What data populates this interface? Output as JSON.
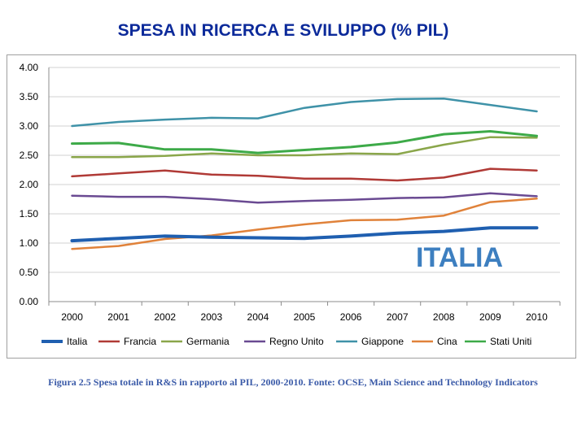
{
  "title": "SPESA IN RICERCA E SVILUPPO (% PIL)",
  "caption": "Figura 2.5 Spesa totale in R&S in rapporto al PIL, 2000-2010. Fonte: OCSE, Main Science and Technology Indicators",
  "chart_data": {
    "type": "line",
    "title": "SPESA IN RICERCA E SVILUPPO (% PIL)",
    "xlabel": "",
    "ylabel": "",
    "categories": [
      "2000",
      "2001",
      "2002",
      "2003",
      "2004",
      "2005",
      "2006",
      "2007",
      "2008",
      "2009",
      "2010"
    ],
    "ylim": [
      0,
      4
    ],
    "yticks": [
      "0.00",
      "0.50",
      "1.00",
      "1.50",
      "2.00",
      "2.50",
      "3.00",
      "3.50",
      "4.00"
    ],
    "grid": true,
    "legend": "bottom",
    "annotation": "ITALIA",
    "series": [
      {
        "name": "Italia",
        "color": "#1f5fb0",
        "width": 4,
        "values": [
          1.04,
          1.08,
          1.12,
          1.1,
          1.09,
          1.08,
          1.12,
          1.17,
          1.2,
          1.26,
          1.26
        ]
      },
      {
        "name": "Francia",
        "color": "#b03a36",
        "width": 2.5,
        "values": [
          2.14,
          2.19,
          2.24,
          2.17,
          2.15,
          2.1,
          2.1,
          2.07,
          2.12,
          2.27,
          2.24
        ]
      },
      {
        "name": "Germania",
        "color": "#8aa64a",
        "width": 2.5,
        "values": [
          2.47,
          2.47,
          2.49,
          2.53,
          2.5,
          2.5,
          2.53,
          2.52,
          2.68,
          2.81,
          2.8
        ]
      },
      {
        "name": "Regno Unito",
        "color": "#6a4a92",
        "width": 2.5,
        "values": [
          1.81,
          1.79,
          1.79,
          1.75,
          1.69,
          1.72,
          1.74,
          1.77,
          1.78,
          1.85,
          1.8
        ]
      },
      {
        "name": "Giappone",
        "color": "#3f92a8",
        "width": 2.5,
        "values": [
          3.0,
          3.07,
          3.11,
          3.14,
          3.13,
          3.31,
          3.41,
          3.46,
          3.47,
          3.36,
          3.25
        ]
      },
      {
        "name": "Cina",
        "color": "#e0823a",
        "width": 2.5,
        "values": [
          0.9,
          0.95,
          1.07,
          1.13,
          1.23,
          1.32,
          1.39,
          1.4,
          1.47,
          1.7,
          1.76
        ]
      },
      {
        "name": "Stati Uniti",
        "color": "#3daa48",
        "width": 3,
        "values": [
          2.7,
          2.71,
          2.6,
          2.6,
          2.54,
          2.59,
          2.64,
          2.72,
          2.86,
          2.91,
          2.83
        ]
      }
    ]
  }
}
